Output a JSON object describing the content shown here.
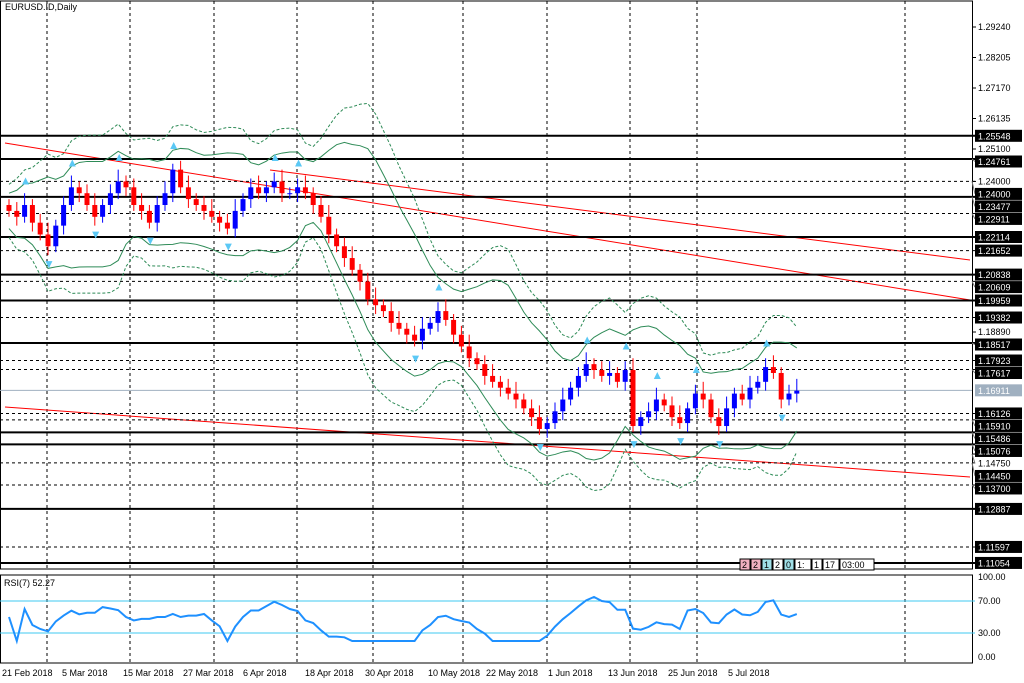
{
  "header": {
    "title": "EURUSD.ID,Daily"
  },
  "rsi": {
    "title": "RSI(7) 52.27"
  },
  "status_boxes": [
    "2",
    "2",
    "1",
    "2",
    "0",
    "1:",
    "1",
    "17",
    "03:00"
  ],
  "colors": {
    "bull": "#0000ff",
    "bear": "#ff0000",
    "band": "#2e8b57",
    "trend": "#ff0000",
    "rsi": "#1e90ff",
    "rsi_level": "#3fc8f0"
  },
  "chart_data": {
    "type": "candlestick",
    "title": "EURUSD.ID,Daily",
    "ylim": [
      1.11054,
      1.2924
    ],
    "y_ticks": [
      "1.29240",
      "1.28205",
      "1.27170",
      "1.26135",
      "1.25100",
      "1.24000",
      "1.18890",
      "1.14750"
    ],
    "x_tick_labels": [
      "21 Feb 2018",
      "5 Mar 2018",
      "15 Mar 2018",
      "27 Mar 2018",
      "6 Apr 2018",
      "18 Apr 2018",
      "30 Apr 2018",
      "10 May 2018",
      "22 May 2018",
      "1 Jun 2018",
      "13 Jun 2018",
      "25 Jun 2018",
      "5 Jul 2018"
    ],
    "closes": [
      1.23,
      1.228,
      1.232,
      1.226,
      1.222,
      1.218,
      1.225,
      1.232,
      1.238,
      1.236,
      1.232,
      1.228,
      1.232,
      1.236,
      1.24,
      1.238,
      1.232,
      1.23,
      1.226,
      1.232,
      1.236,
      1.244,
      1.238,
      1.234,
      1.232,
      1.23,
      1.228,
      1.226,
      1.224,
      1.23,
      1.234,
      1.238,
      1.236,
      1.238,
      1.24,
      1.236,
      1.236,
      1.238,
      1.236,
      1.232,
      1.228,
      1.222,
      1.218,
      1.214,
      1.21,
      1.206,
      1.2,
      1.198,
      1.196,
      1.192,
      1.19,
      1.188,
      1.186,
      1.19,
      1.192,
      1.196,
      1.193,
      1.188,
      1.184,
      1.18,
      1.178,
      1.174,
      1.172,
      1.17,
      1.168,
      1.166,
      1.163,
      1.16,
      1.156,
      1.158,
      1.162,
      1.166,
      1.17,
      1.174,
      1.178,
      1.176,
      1.174,
      1.175,
      1.172,
      1.176,
      1.157,
      1.16,
      1.162,
      1.166,
      1.164,
      1.16,
      1.158,
      1.163,
      1.168,
      1.166,
      1.16,
      1.157,
      1.163,
      1.168,
      1.166,
      1.17,
      1.172,
      1.177,
      1.175,
      1.166,
      1.168,
      1.169
    ],
    "solid_levels": [
      "1.25548",
      "1.24761",
      "1.23477",
      "1.22114",
      "1.20838",
      "1.19959",
      "1.18517",
      "1.15486",
      "1.15076",
      "1.12887",
      "1.11054"
    ],
    "dashed_levels": [
      "1.24000",
      "1.22911",
      "1.21652",
      "1.20609",
      "1.19382",
      "1.17923",
      "1.17617",
      "1.16126",
      "1.15910",
      "1.14450",
      "1.13700",
      "1.11597"
    ],
    "current_price": "1.16911",
    "rsi": {
      "period": 7,
      "last": 52.27,
      "levels": [
        70,
        30
      ],
      "ticks": [
        "100.00",
        "70.00",
        "30.00",
        "0.00"
      ]
    }
  }
}
